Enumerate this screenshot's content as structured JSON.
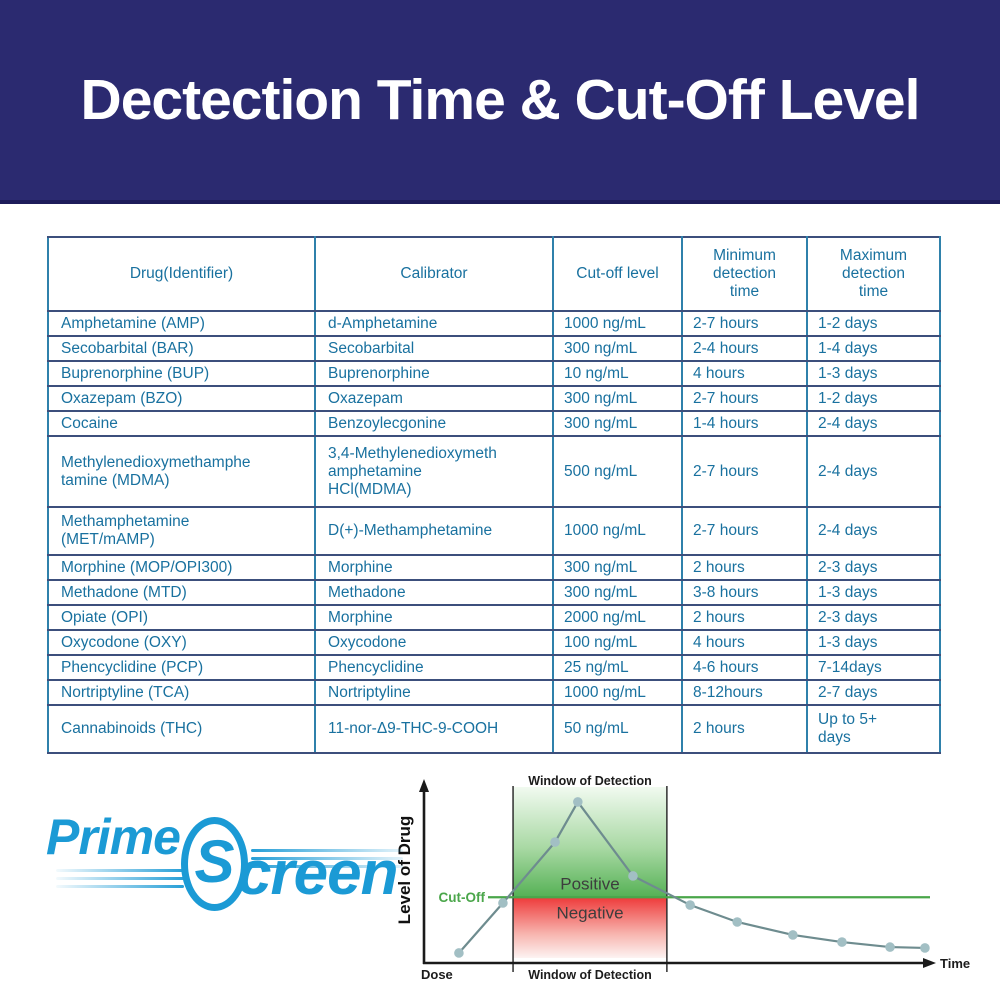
{
  "banner": {
    "title": "Dectection Time & Cut-Off Level",
    "bg_color": "#2b2a70",
    "text_color": "#ffffff"
  },
  "table": {
    "text_color": "#19719f",
    "headers": [
      "Drug(Identifier)",
      "Calibrator",
      "Cut-off level",
      "Minimum\ndetection\ntime",
      "Maximum\ndetection\ntime"
    ],
    "rows": [
      [
        "Amphetamine (AMP)",
        "d-Amphetamine",
        "1000 ng/mL",
        "2-7 hours",
        "1-2 days"
      ],
      [
        "Secobarbital (BAR)",
        "Secobarbital",
        "300 ng/mL",
        "2-4 hours",
        "1-4 days"
      ],
      [
        "Buprenorphine (BUP)",
        "Buprenorphine",
        "10 ng/mL",
        "4 hours",
        "1-3 days"
      ],
      [
        "Oxazepam (BZO)",
        "Oxazepam",
        "300 ng/mL",
        "2-7 hours",
        "1-2 days"
      ],
      [
        "Cocaine",
        "Benzoylecgonine",
        "300 ng/mL",
        "1-4 hours",
        "2-4 days"
      ],
      [
        "Methylenedioxymethamphe\ntamine (MDMA)",
        "3,4-Methylenedioxymeth\namphetamine\nHCl(MDMA)",
        "500 ng/mL",
        "2-7 hours",
        "2-4 days"
      ],
      [
        "Methamphetamine\n(MET/mAMP)",
        "D(+)-Methamphetamine",
        "1000 ng/mL",
        "2-7 hours",
        "2-4 days"
      ],
      [
        "Morphine (MOP/OPI300)",
        "Morphine",
        "300 ng/mL",
        "2 hours",
        "2-3 days"
      ],
      [
        "Methadone (MTD)",
        "Methadone",
        "300 ng/mL",
        "3-8 hours",
        "1-3 days"
      ],
      [
        "Opiate (OPI)",
        "Morphine",
        "2000 ng/mL",
        "2 hours",
        "2-3 days"
      ],
      [
        "Oxycodone (OXY)",
        "Oxycodone",
        "100 ng/mL",
        "4 hours",
        "1-3 days"
      ],
      [
        "Phencyclidine (PCP)",
        "Phencyclidine",
        "25 ng/mL",
        "4-6 hours",
        "7-14days"
      ],
      [
        "Nortriptyline (TCA)",
        "Nortriptyline",
        "1000 ng/mL",
        "8-12hours",
        "2-7 days"
      ],
      [
        "Cannabinoids (THC)",
        "11-nor-Δ9-THC-9-COOH",
        "50 ng/mL",
        "2 hours",
        "Up to 5+\ndays"
      ]
    ]
  },
  "logo": {
    "prime": "Prime",
    "s": "S",
    "creen": "creen",
    "color": "#1b9ad5"
  },
  "chart_data": {
    "type": "line",
    "title_top": "Window of Detection",
    "title_bottom": "Window of Detection",
    "ylabel": "Level of Drug",
    "xlabel": "Time",
    "origin_label": "Dose",
    "cutoff_label": "Cut-Off",
    "positive_label": "Positive",
    "negative_label": "Negative",
    "axis_range": {
      "x": [
        0,
        100
      ],
      "y": [
        0,
        100
      ]
    },
    "cutoff_y": 38,
    "window_x": [
      17.6,
      48
    ],
    "series": [
      {
        "name": "drug-level-over-time",
        "points": [
          [
            6.9,
            5.8
          ],
          [
            15.6,
            34.7
          ],
          [
            25.9,
            69.9
          ],
          [
            30.4,
            93.1
          ],
          [
            41.3,
            50.3
          ],
          [
            52.6,
            33.5
          ],
          [
            61.9,
            23.7
          ],
          [
            72.9,
            16.2
          ],
          [
            82.6,
            12.1
          ],
          [
            92.1,
            9.2
          ],
          [
            99,
            8.7
          ]
        ]
      }
    ],
    "legend_position": "none",
    "grid": false,
    "colors": {
      "cutoff_line": "#4aa64a",
      "curve": "#6e8c8f",
      "dots": "#a2bfc4",
      "positive_fill": "#55b155",
      "negative_fill": "#ee3a3a",
      "window_line": "#2f2f2f"
    }
  }
}
